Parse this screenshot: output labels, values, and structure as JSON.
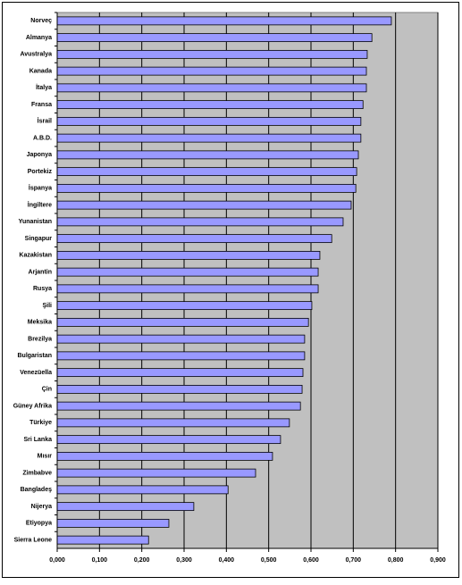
{
  "chart_data": {
    "type": "bar",
    "orientation": "horizontal",
    "categories": [
      "Norveç",
      "Almanya",
      "Avustralya",
      "Kanada",
      "İtalya",
      "Fransa",
      "İsrail",
      "A.B.D.",
      "Japonya",
      "Portekiz",
      "İspanya",
      "İngiltere",
      "Yunanistan",
      "Singapur",
      "Kazakistan",
      "Arjantin",
      "Rusya",
      "Şili",
      "Meksika",
      "Brezilya",
      "Bulgaristan",
      "Venezüella",
      "Çin",
      "Güney Afrika",
      "Türkiye",
      "Sri Lanka",
      "Mısır",
      "Zimbabve",
      "Bangladeş",
      "Nijerya",
      "Etiyopya",
      "Sierra Leone"
    ],
    "values": [
      0.79,
      0.744,
      0.733,
      0.731,
      0.731,
      0.723,
      0.718,
      0.718,
      0.712,
      0.708,
      0.706,
      0.695,
      0.676,
      0.649,
      0.621,
      0.617,
      0.617,
      0.602,
      0.594,
      0.585,
      0.585,
      0.581,
      0.579,
      0.575,
      0.549,
      0.528,
      0.509,
      0.469,
      0.404,
      0.323,
      0.264,
      0.216
    ],
    "color": "#9999ff",
    "xlim": [
      0,
      0.9
    ],
    "xticks": [
      {
        "value": 0,
        "label": "0,000"
      },
      {
        "value": 0.1,
        "label": "0,100"
      },
      {
        "value": 0.2,
        "label": "0,200"
      },
      {
        "value": 0.3,
        "label": "0,300"
      },
      {
        "value": 0.4,
        "label": "0,400"
      },
      {
        "value": 0.5,
        "label": "0,500"
      },
      {
        "value": 0.6,
        "label": "0,600"
      },
      {
        "value": 0.7,
        "label": "0,700"
      },
      {
        "value": 0.8,
        "label": "0,800"
      },
      {
        "value": 0.9,
        "label": "0,900"
      }
    ],
    "grid": true
  }
}
